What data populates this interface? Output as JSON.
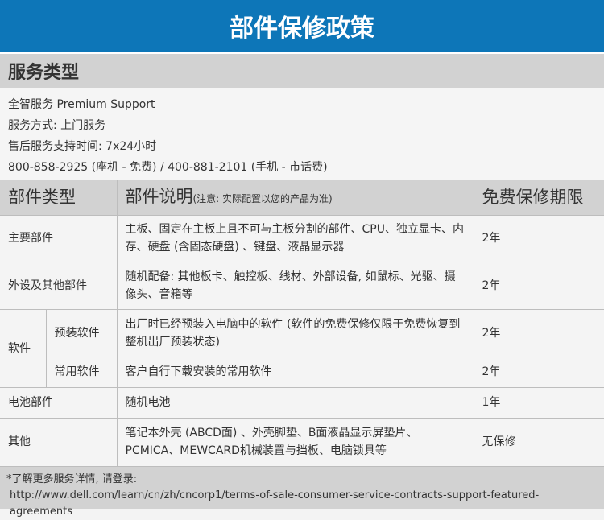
{
  "header": {
    "title": "部件保修政策"
  },
  "service": {
    "section_title": "服务类型",
    "lines": [
      "全智服务 Premium Support",
      "服务方式: 上门服务",
      "售后服务支持时间: 7x24小时",
      "800-858-2925 (座机 - 免费) / 400-881-2101 (手机 - 市话费)"
    ]
  },
  "table": {
    "headers": {
      "type": "部件类型",
      "desc": "部件说明",
      "desc_note": "(注意: 实际配置以您的产品为准)",
      "warranty": "免费保修期限"
    },
    "rows": [
      {
        "type": "主要部件",
        "desc": "主板、固定在主板上且不可与主板分割的部件、CPU、独立显卡、内存、硬盘 (含固态硬盘) 、键盘、液晶显示器",
        "warranty": "2年"
      },
      {
        "type": "外设及其他部件",
        "desc": "随机配备: 其他板卡、触控板、线材、外部设备, 如鼠标、光驱、摄像头、音箱等",
        "warranty": "2年"
      },
      {
        "type": "软件",
        "subtype": "预装软件",
        "desc": "出厂时已经预装入电脑中的软件 (软件的免费保修仅限于免费恢复到整机出厂预装状态)",
        "warranty": "2年"
      },
      {
        "subtype": "常用软件",
        "desc": "客户自行下载安装的常用软件",
        "warranty": "2年"
      },
      {
        "type": "电池部件",
        "desc": "随机电池",
        "warranty": "1年"
      },
      {
        "type": "其他",
        "desc": "笔记本外壳 (ABCD面) 、外壳脚垫、B面液晶显示屏垫片、PCMICA、MEWCARD机械装置与挡板、电脑锁具等",
        "warranty": "无保修"
      }
    ]
  },
  "footer": {
    "note": "*了解更多服务详情, 请登录:",
    "url": "http://www.dell.com/learn/cn/zh/cncorp1/terms-of-sale-consumer-service-contracts-support-featured-agreements"
  }
}
